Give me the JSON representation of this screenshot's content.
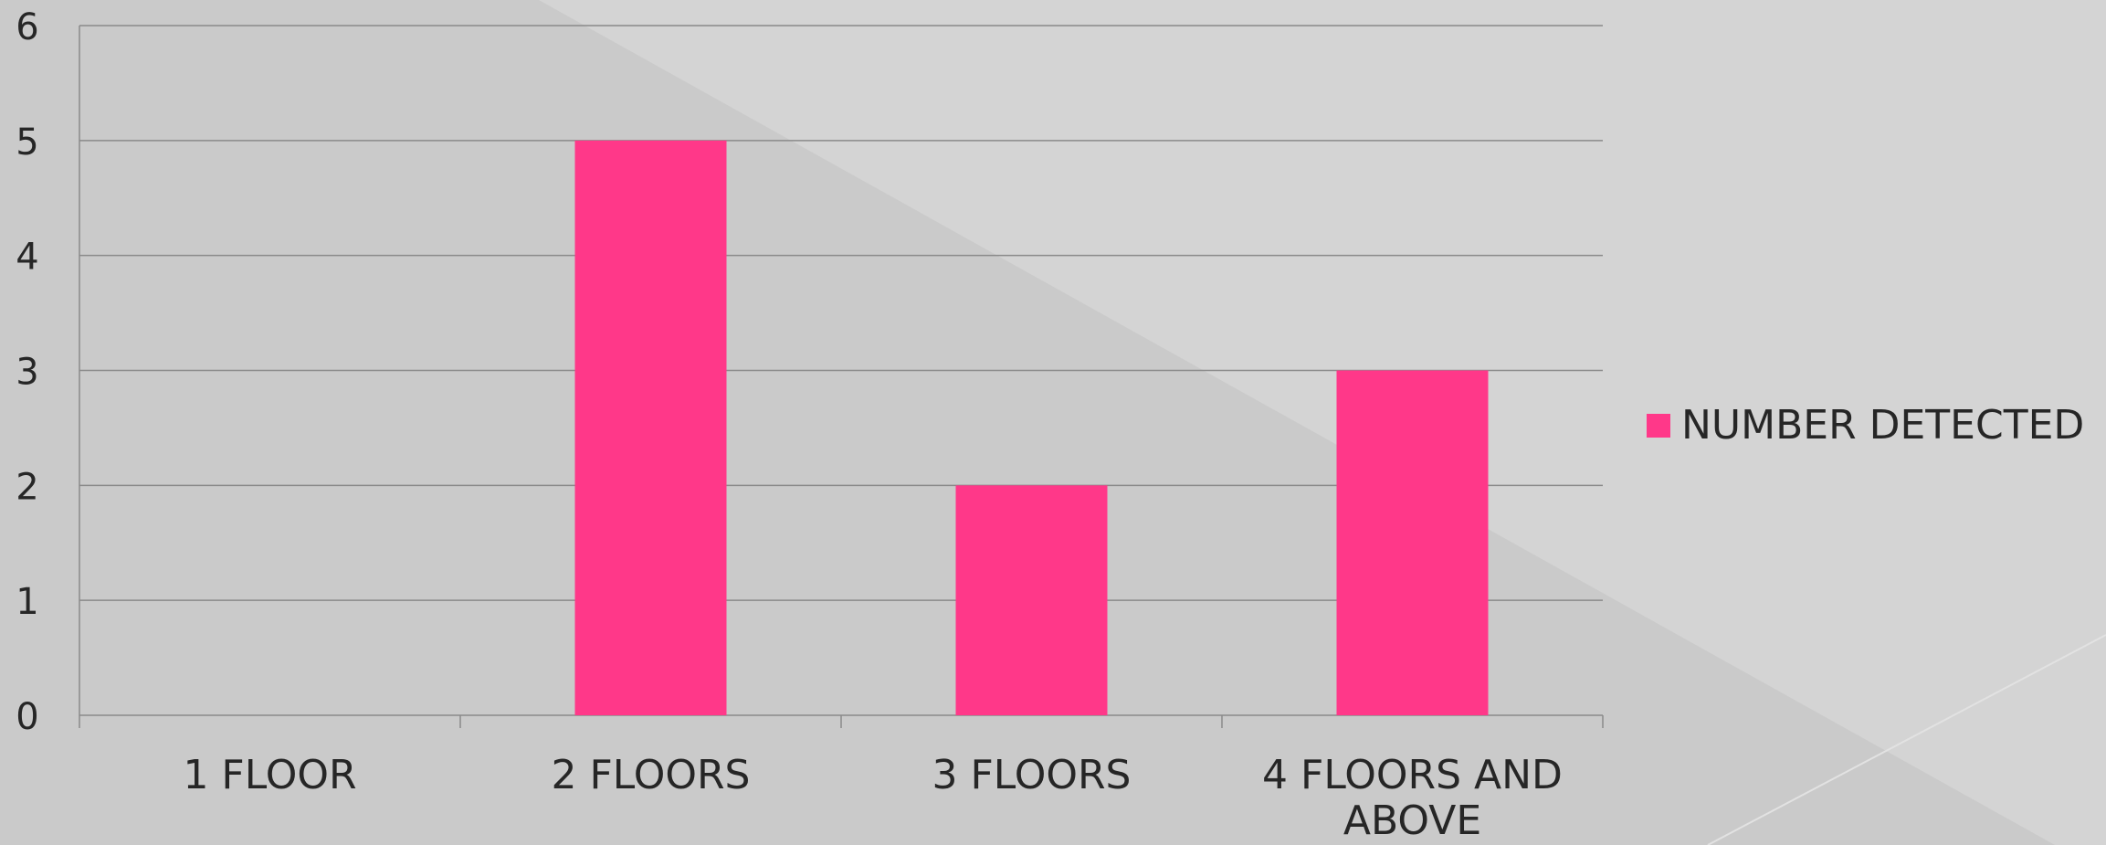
{
  "chart_data": {
    "type": "bar",
    "categories": [
      "1 FLOOR",
      "2 FLOORS",
      "3 FLOORS",
      "4 FLOORS AND ABOVE"
    ],
    "series": [
      {
        "name": "NUMBER DETECTED",
        "values": [
          0,
          5,
          2,
          3
        ],
        "color": "#FF3889"
      }
    ],
    "title": "",
    "xlabel": "",
    "ylabel": "",
    "ylim": [
      0,
      6
    ],
    "yticks": [
      0,
      1,
      2,
      3,
      4,
      5,
      6
    ],
    "grid": true,
    "legend_position": "right"
  },
  "colors": {
    "background": "#cacaca",
    "background_light": "#d4d4d4",
    "gridline": "#8a8a8a",
    "text": "#262626"
  }
}
